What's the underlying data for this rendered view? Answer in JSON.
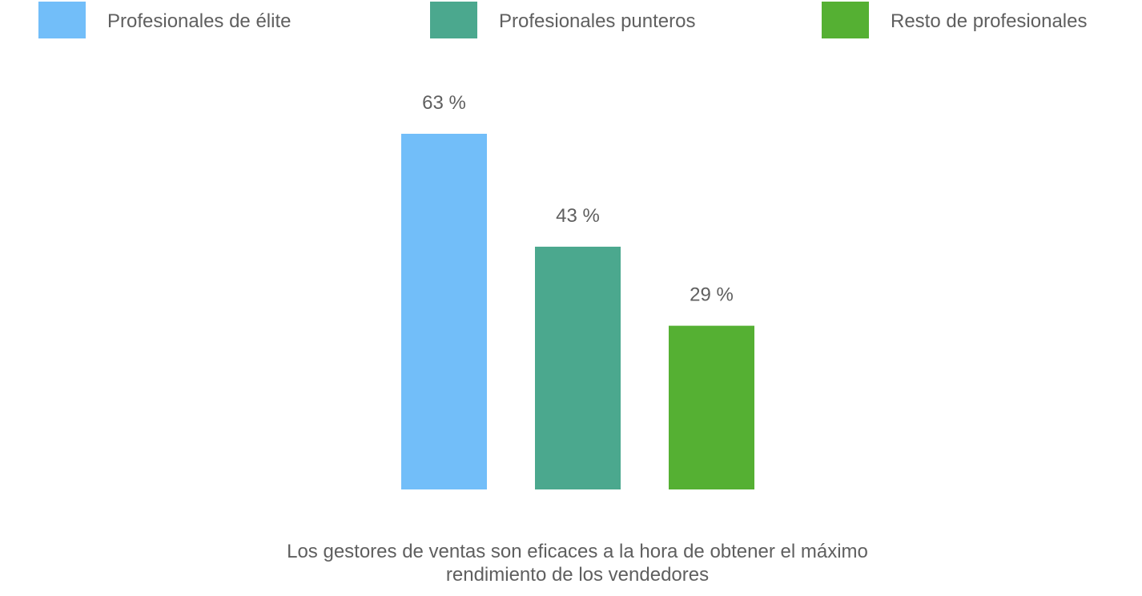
{
  "chart_data": {
    "type": "bar",
    "categories": [
      "Los gestores de ventas son eficaces a la hora de obtener el máximo rendimiento de los vendedores"
    ],
    "series": [
      {
        "name": "Profesionales de élite",
        "values": [
          63
        ],
        "label": "63 %",
        "color": "#72BEF9"
      },
      {
        "name": "Profesionales punteros",
        "values": [
          43
        ],
        "label": "43 %",
        "color": "#4BA88E"
      },
      {
        "name": "Resto de profesionales",
        "values": [
          29
        ],
        "label": "29 %",
        "color": "#55B033"
      }
    ],
    "ylim": [
      0,
      63
    ],
    "grid": false,
    "legend_position": "top"
  }
}
